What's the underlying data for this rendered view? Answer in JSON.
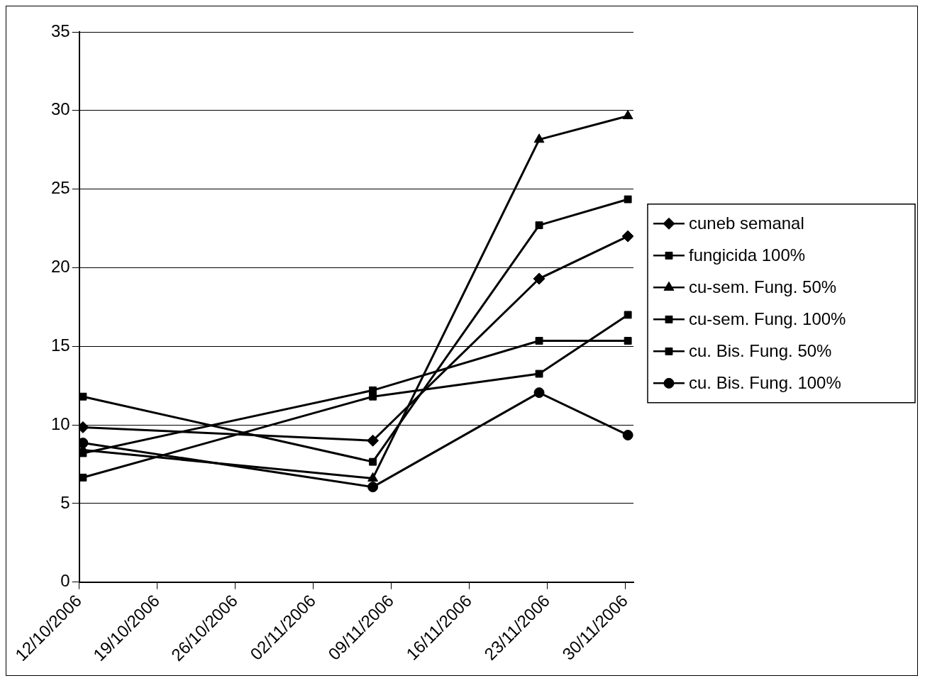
{
  "chart_data": {
    "type": "line",
    "x": [
      "2006-10-12T08:00",
      "2006-11-07T08:00",
      "2006-11-22T06:00",
      "2006-11-30T05:00"
    ],
    "series": [
      {
        "name": "cuneb semanal",
        "color": "#000000",
        "marker": "diamond",
        "values": [
          9.85,
          9.0,
          19.3,
          22.0
        ]
      },
      {
        "name": "fungicida 100%",
        "color": "#000000",
        "marker": "square",
        "values": [
          11.8,
          7.65,
          22.7,
          24.35
        ]
      },
      {
        "name": "cu-sem. Fung. 50%",
        "color": "#000000",
        "marker": "triangle",
        "values": [
          8.4,
          6.6,
          28.15,
          29.65
        ]
      },
      {
        "name": "cu-sem. Fung. 100%",
        "color": "#000000",
        "marker": "square",
        "values": [
          8.2,
          12.2,
          15.35,
          15.35
        ]
      },
      {
        "name": "cu. Bis. Fung. 50%",
        "color": "#000000",
        "marker": "square",
        "values": [
          6.65,
          11.8,
          13.25,
          17.0
        ]
      },
      {
        "name": "cu. Bis. Fung. 100%",
        "color": "#000000",
        "marker": "circle",
        "values": [
          8.85,
          6.05,
          12.05,
          9.35
        ]
      }
    ],
    "xlim": [
      "2006-10-12",
      "2006-11-30T17:00"
    ],
    "xticks": [
      {
        "value": "2006-10-12",
        "label": "12/10/2006"
      },
      {
        "value": "2006-10-19",
        "label": "19/10/2006"
      },
      {
        "value": "2006-10-26",
        "label": "26/10/2006"
      },
      {
        "value": "2006-11-02",
        "label": "02/11/2006"
      },
      {
        "value": "2006-11-09",
        "label": "09/11/2006"
      },
      {
        "value": "2006-11-16",
        "label": "16/11/2006"
      },
      {
        "value": "2006-11-23",
        "label": "23/11/2006"
      },
      {
        "value": "2006-11-30",
        "label": "30/11/2006"
      }
    ],
    "ylim": [
      0,
      35
    ],
    "yticks": [
      0,
      5,
      10,
      15,
      20,
      25,
      30,
      35
    ],
    "grid": "y",
    "legend": "right",
    "line_style": "solid"
  }
}
